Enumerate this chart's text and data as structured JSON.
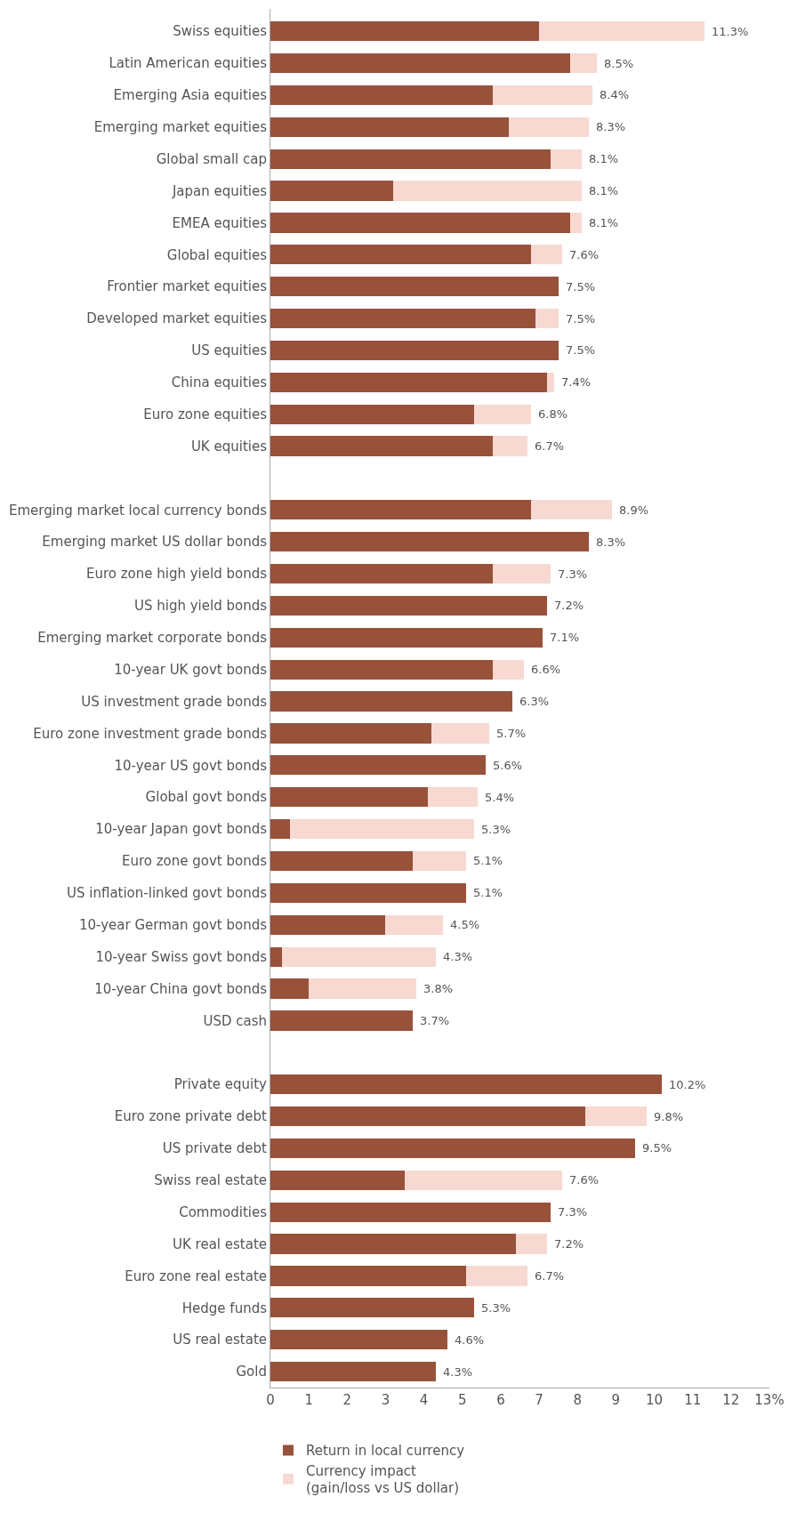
{
  "chart_data": {
    "type": "bar",
    "orientation": "horizontal",
    "stacked": true,
    "categories": [
      "Swiss equities",
      "Latin American equities",
      "Emerging Asia equities",
      "Emerging market equities",
      "Global small cap",
      "Japan equities",
      "EMEA equities",
      "Global equities",
      "Frontier market equities",
      "Developed market equities",
      "US equities",
      "China equities",
      "Euro zone equities",
      "UK equities",
      null,
      "Emerging market local currency bonds",
      "Emerging market US dollar bonds",
      "Euro zone high yield bonds",
      "US high yield bonds",
      "Emerging market corporate bonds",
      "10-year UK govt bonds",
      "US investment grade bonds",
      "Euro zone investment grade bonds",
      "10-year US govt bonds",
      "Global govt bonds",
      "10-year Japan govt bonds",
      "Euro zone govt bonds",
      "US inflation-linked govt bonds",
      "10-year German govt bonds",
      "10-year Swiss govt bonds",
      "10-year China govt bonds",
      "USD cash",
      null,
      "Private equity",
      "Euro zone private debt",
      "US private debt",
      "Swiss real estate",
      "Commodities",
      "UK real estate",
      "Euro zone real estate",
      "Hedge funds",
      "US real estate",
      "Gold"
    ],
    "series": [
      {
        "name": "Return in local currency",
        "color": "#985239",
        "values": [
          7.0,
          7.8,
          5.8,
          6.2,
          7.3,
          3.2,
          7.8,
          6.8,
          7.5,
          6.9,
          7.5,
          7.2,
          5.3,
          5.8,
          null,
          6.8,
          8.3,
          5.8,
          7.2,
          7.1,
          5.8,
          6.3,
          4.2,
          5.6,
          4.1,
          0.5,
          3.7,
          5.1,
          3.0,
          0.3,
          1.0,
          3.7,
          null,
          10.2,
          8.2,
          9.5,
          3.5,
          7.3,
          6.4,
          5.1,
          5.3,
          4.6,
          4.3
        ]
      },
      {
        "name": "Currency impact\n(gain/loss vs US dollar)",
        "color": "#f7d9d2",
        "values": [
          4.3,
          0.7,
          2.6,
          2.1,
          0.8,
          4.9,
          0.3,
          0.8,
          0,
          0.6,
          0,
          0.2,
          1.5,
          0.9,
          null,
          2.1,
          0,
          1.5,
          0,
          0,
          0.8,
          0,
          1.5,
          0,
          1.3,
          4.8,
          1.4,
          0,
          1.5,
          4.0,
          2.8,
          0,
          null,
          0,
          1.6,
          0,
          4.1,
          0,
          0.8,
          1.6,
          0,
          0,
          0
        ]
      }
    ],
    "totals": [
      "11.3%",
      "8.5%",
      "8.4%",
      "8.3%",
      "8.1%",
      "8.1%",
      "8.1%",
      "7.6%",
      "7.5%",
      "7.5%",
      "7.5%",
      "7.4%",
      "6.8%",
      "6.7%",
      null,
      "8.9%",
      "8.3%",
      "7.3%",
      "7.2%",
      "7.1%",
      "6.6%",
      "6.3%",
      "5.7%",
      "5.6%",
      "5.4%",
      "5.3%",
      "5.1%",
      "5.1%",
      "4.5%",
      "4.3%",
      "3.8%",
      "3.7%",
      null,
      "10.2%",
      "9.8%",
      "9.5%",
      "7.6%",
      "7.3%",
      "7.2%",
      "6.7%",
      "5.3%",
      "4.6%",
      "4.3%"
    ],
    "xlim": [
      0,
      13
    ],
    "xticks": [
      0,
      1,
      2,
      3,
      4,
      5,
      6,
      7,
      8,
      9,
      10,
      11,
      12,
      {
        "value": 13,
        "label": "13%"
      }
    ],
    "legend": "bottom left"
  }
}
